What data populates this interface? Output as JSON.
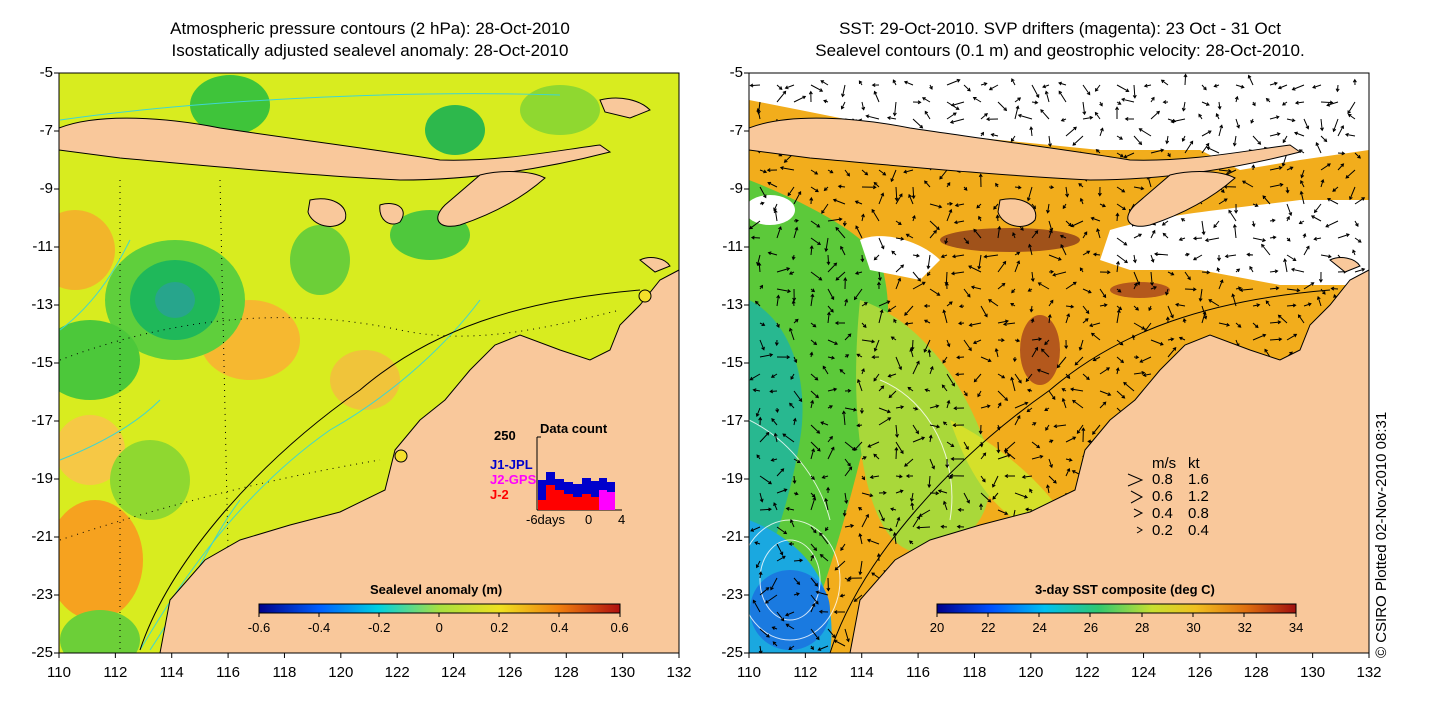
{
  "left_panel": {
    "title_line1": "Atmospheric pressure contours (2 hPa): 28-Oct-2010",
    "title_line2": "Isostatically adjusted sealevel anomaly: 28-Oct-2010",
    "colorbar_label": "Sealevel anomaly (m)",
    "colorbar_ticks": [
      "-0.6",
      "-0.4",
      "-0.2",
      "0",
      "0.2",
      "0.4",
      "0.6"
    ],
    "inset": {
      "title": "Data count",
      "y_max_label": "250",
      "legend": [
        "J1-JPL",
        "J2-GPS",
        "J-2"
      ],
      "legend_colors": [
        "#0000cc",
        "#ff00ff",
        "#ff0000"
      ],
      "x_labels": [
        "-6days",
        "0",
        "4"
      ]
    }
  },
  "right_panel": {
    "title_line1": "SST: 29-Oct-2010. SVP drifters (magenta): 23 Oct - 31 Oct",
    "title_line2": "Sealevel contours (0.1 m) and geostrophic velocity: 28-Oct-2010.",
    "colorbar_label": "3-day SST composite (deg C)",
    "colorbar_ticks": [
      "20",
      "22",
      "24",
      "26",
      "28",
      "30",
      "32",
      "34"
    ],
    "speed_legend": {
      "header_ms": "m/s",
      "header_kt": "kt",
      "rows": [
        {
          "ms": "0.8",
          "kt": "1.6"
        },
        {
          "ms": "0.6",
          "kt": "1.2"
        },
        {
          "ms": "0.4",
          "kt": "0.8"
        },
        {
          "ms": "0.2",
          "kt": "0.4"
        }
      ]
    }
  },
  "axes": {
    "y_ticks": [
      "-5",
      "-7",
      "-9",
      "-11",
      "-13",
      "-15",
      "-17",
      "-19",
      "-21",
      "-23",
      "-25"
    ],
    "x_ticks": [
      "110",
      "112",
      "114",
      "116",
      "118",
      "120",
      "122",
      "124",
      "126",
      "128",
      "130",
      "132"
    ]
  },
  "copyright": "© CSIRO Plotted 02-Nov-2010 08:31",
  "colors": {
    "land": "#f9c89b",
    "sea_base_left": "#d8ec1f",
    "sea_base_right": "#f2ad1c",
    "anomaly_positive": "#f6a21f",
    "anomaly_negative": "#1db94a",
    "cloud_mask": "#ffffff"
  }
}
